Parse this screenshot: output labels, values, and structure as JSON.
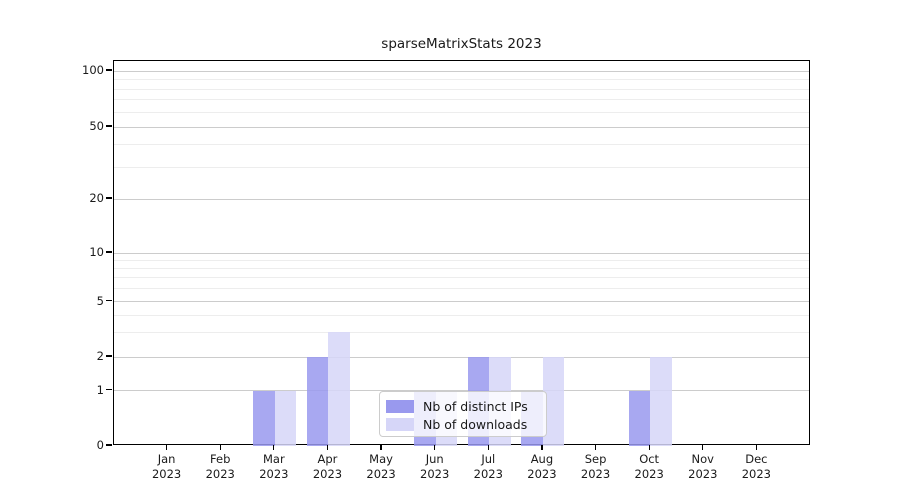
{
  "chart_data": {
    "type": "bar",
    "title": "sparseMatrixStats 2023",
    "categories": [
      "Jan",
      "Feb",
      "Mar",
      "Apr",
      "May",
      "Jun",
      "Jul",
      "Aug",
      "Sep",
      "Oct",
      "Nov",
      "Dec"
    ],
    "year_label": "2023",
    "series": [
      {
        "name": "Nb of distinct IPs",
        "color": "#9999ee",
        "values": [
          0,
          0,
          1,
          2,
          0,
          1,
          2,
          1,
          0,
          1,
          0,
          0
        ]
      },
      {
        "name": "Nb of downloads",
        "color": "#d6d6f8",
        "values": [
          0,
          0,
          1,
          3,
          0,
          1,
          2,
          2,
          0,
          2,
          0,
          0
        ]
      }
    ],
    "y_ticks": [
      0,
      1,
      2,
      5,
      10,
      20,
      50,
      100
    ],
    "y_minor_gridlines": [
      3,
      4,
      6,
      7,
      8,
      9,
      30,
      40,
      60,
      70,
      80,
      90
    ],
    "y_scale": "log-like",
    "ylim": [
      0,
      100
    ],
    "xlabel": "",
    "ylabel": "",
    "grid": true,
    "legend_position": "lower center"
  },
  "colors": {
    "grid_major": "#cccccc",
    "grid_minor": "#ededed",
    "axis": "#000000",
    "background": "#ffffff"
  }
}
